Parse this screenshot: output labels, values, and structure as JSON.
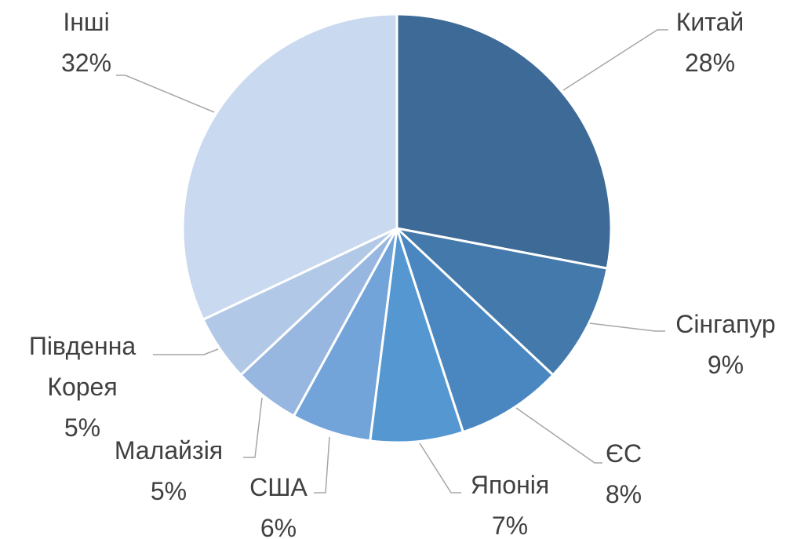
{
  "chart_data": {
    "type": "pie",
    "categories": [
      "Китай",
      "Сінгапур",
      "ЄС",
      "Японія",
      "США",
      "Малайзія",
      "Південна Корея",
      "Інші"
    ],
    "values": [
      28,
      9,
      8,
      7,
      6,
      5,
      5,
      32
    ],
    "value_labels": [
      "28%",
      "9%",
      "8%",
      "7%",
      "6%",
      "5%",
      "5%",
      "32%"
    ],
    "colors": [
      "#3d6a96",
      "#4479ab",
      "#4a87c0",
      "#5597d0",
      "#72a3d9",
      "#98b7e0",
      "#b2c8e7",
      "#c9d9ef"
    ]
  }
}
